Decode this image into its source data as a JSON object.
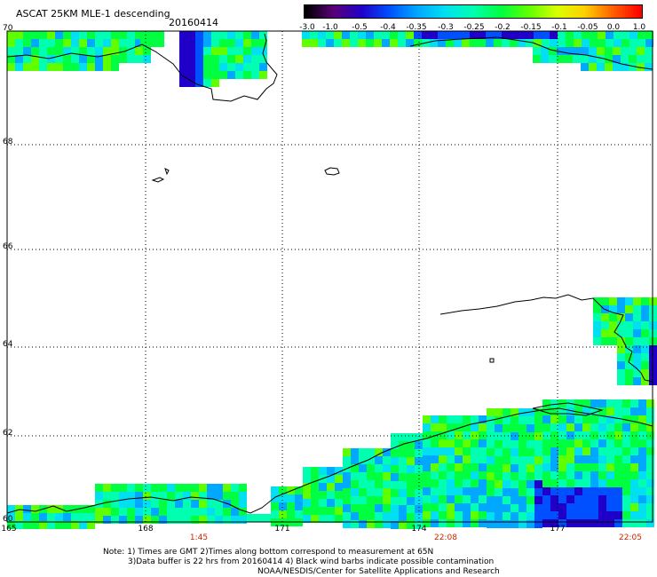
{
  "header": {
    "title": "ASCAT 25KM MLE-1 descending",
    "date": "20160414"
  },
  "colorbar": {
    "labels": [
      "-3.0",
      "-1.0",
      "-0.5",
      "-0.4",
      "-0.35",
      "-0.3",
      "-0.25",
      "-0.2",
      "-0.15",
      "-0.1",
      "-0.05",
      "0.0",
      "1.0"
    ],
    "colors": [
      "#000000",
      "#5a0078",
      "#2000c8",
      "#0050ff",
      "#00a8ff",
      "#00e0f0",
      "#00ffb0",
      "#00ff40",
      "#60ff00",
      "#d8ff00",
      "#ffd000",
      "#ff6000",
      "#ff0000"
    ]
  },
  "map": {
    "lat_labels": [
      "70",
      "68",
      "66",
      "64",
      "62",
      "60"
    ],
    "lon_labels": [
      "165",
      "168",
      "171",
      "174",
      "177"
    ],
    "time_labels": [
      "1:45",
      "22:08",
      "22:05"
    ]
  },
  "notes": {
    "line1": "Note: 1) Times are GMT 2)Times along bottom correspond to measurement at 65N",
    "line2": "3)Data buffer is 22 hrs from 20160414 4) Black wind barbs indicate possible contamination",
    "line3": "NOAA/NESDIS/Center for Satellite Applications and Research"
  }
}
